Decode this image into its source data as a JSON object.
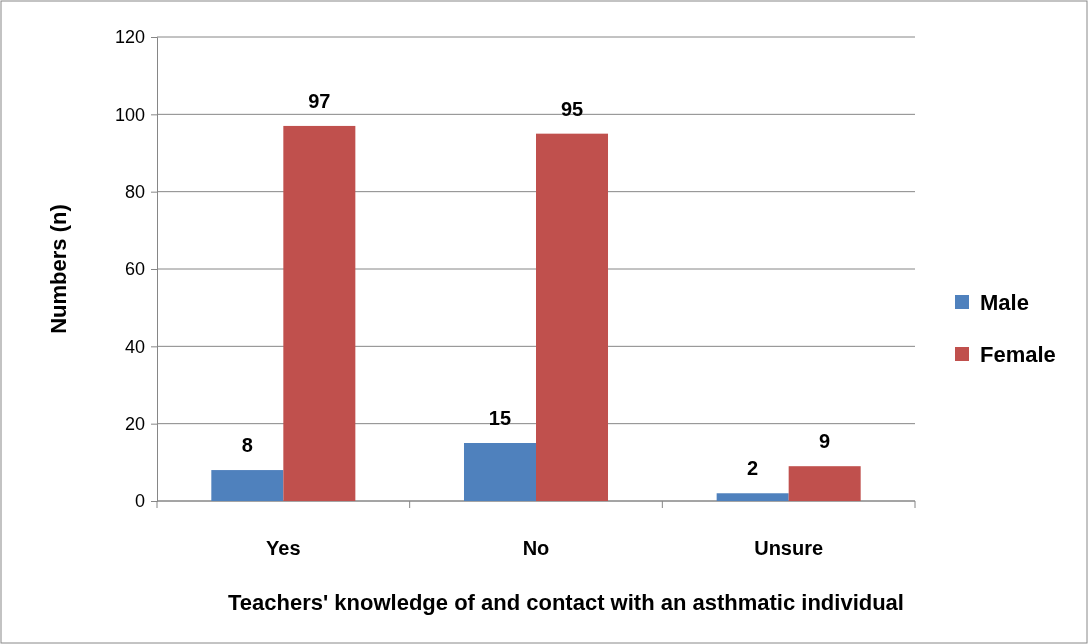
{
  "chart_data": {
    "type": "bar",
    "xlabel": "Teachers' knowledge of  and contact with an asthmatic individual",
    "ylabel": "Numbers (n)",
    "categories": [
      "Yes",
      "No",
      "Unsure"
    ],
    "series": [
      {
        "name": "Male",
        "color": "#4f81bd",
        "values": [
          8,
          15,
          2
        ]
      },
      {
        "name": "Female",
        "color": "#c0504d",
        "values": [
          97,
          95,
          9
        ]
      }
    ],
    "ylim": [
      0,
      120
    ],
    "yticks": [
      0,
      20,
      40,
      60,
      80,
      100,
      120
    ],
    "grid": "y",
    "legend": "right",
    "data_labels": true
  }
}
